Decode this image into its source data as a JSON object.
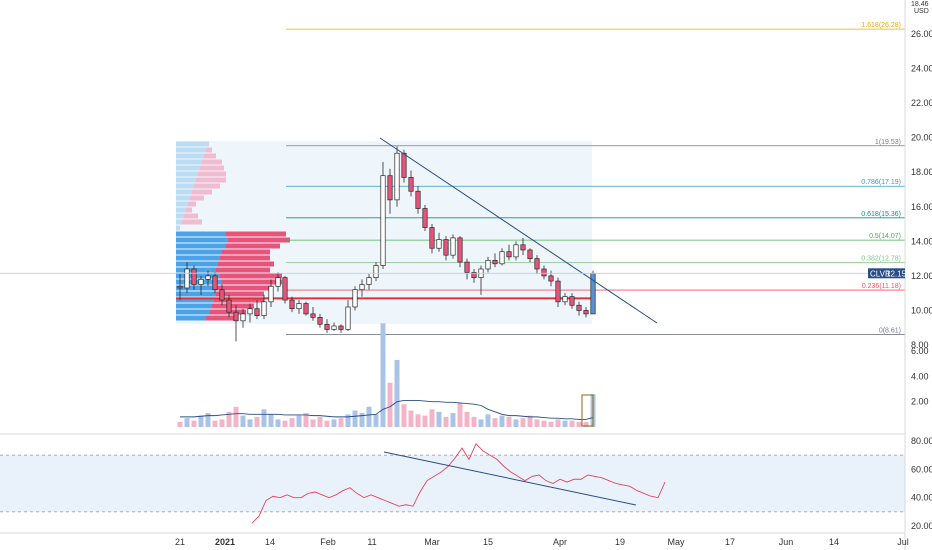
{
  "price_axis": {
    "unit_top": "18.46",
    "unit": "USD",
    "ticks": [
      "26.00",
      "24.00",
      "22.00",
      "20.00",
      "18.00",
      "16.00",
      "14.00",
      "12.00",
      "10.00",
      "8.00"
    ],
    "values": [
      26,
      24,
      22,
      20,
      18,
      16,
      14,
      12,
      10,
      8
    ]
  },
  "volume_axis": {
    "ticks": [
      "6.00",
      "4.00",
      "2.00"
    ],
    "values": [
      6,
      4,
      2
    ]
  },
  "rsi_axis": {
    "ticks": [
      "80.00",
      "60.00",
      "40.00",
      "20.00"
    ],
    "values": [
      80,
      60,
      40,
      20
    ]
  },
  "time_axis": {
    "labels": [
      "21",
      "2021",
      "14",
      "Feb",
      "11",
      "Mar",
      "15",
      "Apr",
      "19",
      "May",
      "17",
      "Jun",
      "14",
      "Jul"
    ],
    "bold": [
      false,
      true,
      false,
      false,
      false,
      false,
      false,
      false,
      false,
      false,
      false,
      false,
      false,
      false
    ]
  },
  "ticker": {
    "symbol": "CLVR",
    "last_price": "12.15",
    "color": "#2a4d88"
  },
  "fib_levels": [
    {
      "label": "1.618(26.28)",
      "value": 26.28,
      "color": "#f2a900"
    },
    {
      "label": "1(19.53)",
      "value": 19.53,
      "color": "#787b86"
    },
    {
      "label": "0.786(17.19)",
      "value": 17.19,
      "color": "#2e9ad0"
    },
    {
      "label": "0.618(15.36)",
      "value": 15.36,
      "color": "#089981"
    },
    {
      "label": "0.5(14.07)",
      "value": 14.07,
      "color": "#4caf50"
    },
    {
      "label": "0.382(12.78)",
      "value": 12.78,
      "color": "#81c784"
    },
    {
      "label": "0.236(11.18)",
      "value": 11.18,
      "color": "#f7525f"
    },
    {
      "label": "0(8.61)",
      "value": 8.61,
      "color": "#787b86"
    }
  ],
  "chart_data": [
    {
      "type": "candlestick",
      "title": "",
      "ylim": [
        7.5,
        28.0
      ],
      "support_line": 10.7,
      "candles": [
        [
          11.4,
          12.1,
          10.6,
          11.3
        ],
        [
          11.3,
          12.8,
          11.0,
          12.4
        ],
        [
          12.4,
          12.6,
          11.2,
          11.5
        ],
        [
          11.5,
          12.0,
          10.9,
          11.8
        ],
        [
          11.8,
          12.3,
          11.4,
          12.0
        ],
        [
          12.0,
          12.2,
          11.0,
          11.2
        ],
        [
          11.2,
          11.5,
          10.3,
          10.6
        ],
        [
          10.6,
          10.9,
          9.6,
          9.9
        ],
        [
          9.9,
          10.3,
          8.2,
          9.4
        ],
        [
          9.4,
          10.1,
          9.0,
          9.8
        ],
        [
          9.8,
          10.4,
          9.3,
          10.1
        ],
        [
          10.1,
          10.6,
          9.5,
          9.7
        ],
        [
          9.7,
          10.9,
          9.5,
          10.5
        ],
        [
          10.5,
          11.8,
          10.2,
          11.4
        ],
        [
          11.4,
          12.2,
          11.1,
          11.9
        ],
        [
          11.9,
          12.0,
          10.4,
          10.6
        ],
        [
          10.6,
          10.8,
          9.9,
          10.1
        ],
        [
          10.1,
          10.6,
          9.8,
          10.4
        ],
        [
          10.4,
          10.5,
          9.7,
          9.8
        ],
        [
          9.8,
          10.2,
          9.4,
          9.6
        ],
        [
          9.6,
          9.8,
          9.0,
          9.2
        ],
        [
          9.2,
          9.5,
          8.7,
          8.9
        ],
        [
          8.9,
          9.3,
          8.8,
          9.1
        ],
        [
          9.1,
          9.2,
          8.7,
          8.9
        ],
        [
          8.9,
          10.6,
          8.8,
          10.2
        ],
        [
          10.2,
          11.4,
          10.0,
          11.2
        ],
        [
          11.2,
          11.8,
          10.8,
          11.5
        ],
        [
          11.5,
          12.1,
          11.2,
          11.9
        ],
        [
          11.9,
          12.8,
          11.7,
          12.6
        ],
        [
          12.6,
          18.6,
          12.4,
          17.8
        ],
        [
          17.8,
          18.2,
          15.6,
          16.4
        ],
        [
          16.4,
          19.5,
          16.0,
          19.1
        ],
        [
          19.1,
          19.3,
          17.4,
          17.7
        ],
        [
          17.7,
          18.1,
          16.6,
          16.9
        ],
        [
          16.9,
          17.2,
          15.6,
          15.9
        ],
        [
          15.9,
          16.1,
          14.6,
          14.8
        ],
        [
          14.8,
          15.0,
          13.3,
          13.6
        ],
        [
          13.6,
          14.5,
          13.4,
          14.1
        ],
        [
          14.1,
          14.3,
          12.9,
          13.2
        ],
        [
          13.2,
          14.4,
          13.0,
          14.2
        ],
        [
          14.2,
          14.3,
          12.5,
          12.8
        ],
        [
          12.8,
          13.0,
          11.8,
          12.2
        ],
        [
          12.2,
          12.4,
          11.6,
          11.9
        ],
        [
          11.9,
          12.6,
          10.9,
          12.4
        ],
        [
          12.4,
          13.1,
          12.2,
          12.9
        ],
        [
          12.9,
          13.3,
          12.5,
          12.7
        ],
        [
          12.7,
          13.6,
          12.6,
          13.4
        ],
        [
          13.4,
          13.8,
          12.9,
          13.1
        ],
        [
          13.1,
          14.0,
          12.9,
          13.8
        ],
        [
          13.8,
          14.2,
          13.2,
          13.5
        ],
        [
          13.5,
          13.6,
          12.8,
          13.0
        ],
        [
          13.0,
          13.2,
          12.1,
          12.4
        ],
        [
          12.4,
          12.6,
          11.8,
          12.0
        ],
        [
          12.0,
          12.3,
          11.4,
          11.7
        ],
        [
          11.7,
          11.9,
          10.2,
          10.5
        ],
        [
          10.5,
          11.0,
          10.3,
          10.8
        ],
        [
          10.8,
          11.0,
          10.1,
          10.3
        ],
        [
          10.3,
          10.5,
          9.7,
          10.0
        ],
        [
          10.0,
          10.2,
          9.6,
          9.8
        ],
        [
          9.8,
          12.3,
          9.8,
          12.15
        ]
      ]
    },
    {
      "type": "bar",
      "title": "",
      "ylim": [
        0,
        8.3
      ],
      "values": [
        0.4,
        0.7,
        0.5,
        0.9,
        1.1,
        0.5,
        0.6,
        1.2,
        1.6,
        0.9,
        0.6,
        0.8,
        1.4,
        1.0,
        0.6,
        0.5,
        0.7,
        0.9,
        1.1,
        0.6,
        0.8,
        0.5,
        0.6,
        0.7,
        1.0,
        1.3,
        1.1,
        1.6,
        1.0,
        8.2,
        3.5,
        5.3,
        1.8,
        1.3,
        1.0,
        0.9,
        1.4,
        1.2,
        0.8,
        1.1,
        1.9,
        1.2,
        0.8,
        0.6,
        1.0,
        0.7,
        0.9,
        0.8,
        0.6,
        0.7,
        0.9,
        0.6,
        0.5,
        0.4,
        0.6,
        0.5,
        0.5,
        0.4,
        0.4,
        2.6
      ],
      "moving_average": [
        0.8,
        0.8,
        0.8,
        0.85,
        0.9,
        0.9,
        0.95,
        1.0,
        1.05,
        1.05,
        1.0,
        1.0,
        1.0,
        1.0,
        1.0,
        0.95,
        0.95,
        0.95,
        0.95,
        0.9,
        0.9,
        0.85,
        0.8,
        0.8,
        0.8,
        0.85,
        0.9,
        0.95,
        1.0,
        1.4,
        1.6,
        2.0,
        2.1,
        2.1,
        2.1,
        2.05,
        2.0,
        2.0,
        1.95,
        1.95,
        1.9,
        1.85,
        1.8,
        1.7,
        1.4,
        1.2,
        1.0,
        0.9,
        0.9,
        0.85,
        0.8,
        0.8,
        0.75,
        0.7,
        0.7,
        0.65,
        0.65,
        0.6,
        0.6,
        0.75
      ]
    },
    {
      "type": "line",
      "title": "",
      "ylim": [
        14,
        86
      ],
      "upper_band": 70,
      "lower_band": 30,
      "values": [
        22,
        27,
        38,
        41,
        40,
        42,
        40,
        40,
        43,
        44,
        42,
        40,
        42,
        45,
        47,
        43,
        40,
        42,
        40,
        38,
        36,
        34,
        35,
        34,
        44,
        52,
        55,
        58,
        62,
        68,
        75,
        67,
        78,
        73,
        70,
        67,
        62,
        58,
        55,
        52,
        55,
        56,
        52,
        50,
        53,
        51,
        53,
        53,
        56,
        55,
        54,
        52,
        50,
        49,
        48,
        45,
        43,
        41,
        40,
        51
      ]
    }
  ]
}
